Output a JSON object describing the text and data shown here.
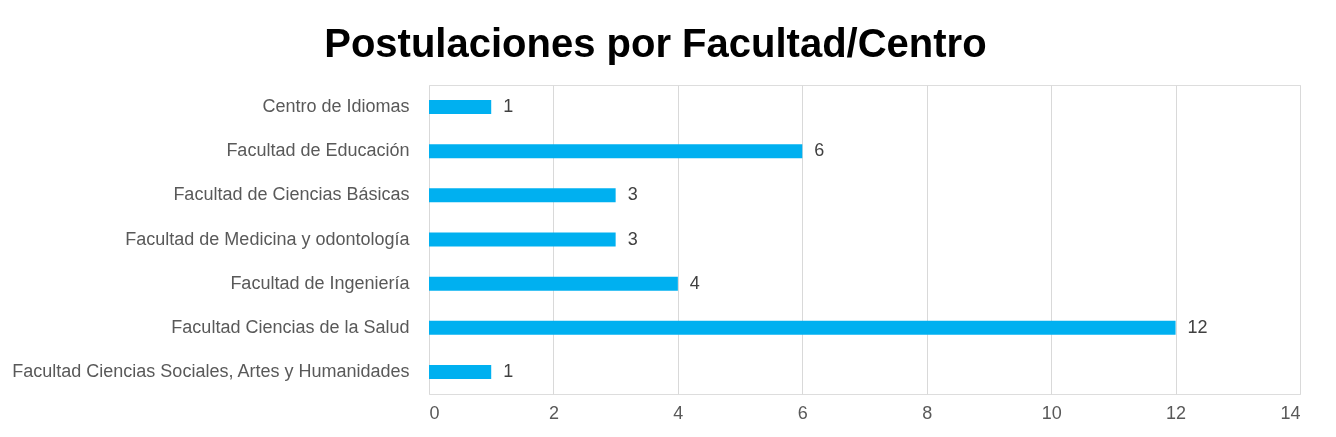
{
  "chart_data": {
    "type": "bar",
    "orientation": "horizontal",
    "title": "Postulaciones por Facultad/Centro",
    "categories": [
      "Centro de Idiomas",
      "Facultad de Educación",
      "Facultad de Ciencias Básicas",
      "Facultad de Medicina y odontología",
      "Facultad de Ingeniería",
      "Facultad Ciencias de la Salud",
      "Facultad Ciencias Sociales, Artes y Humanidades"
    ],
    "values": [
      1,
      6,
      3,
      3,
      4,
      12,
      1
    ],
    "color": "#00b0f0",
    "xlim": [
      0,
      14
    ],
    "xticks": [
      0,
      2,
      4,
      6,
      8,
      10,
      12,
      14
    ],
    "grid": "x",
    "data_labels": true
  }
}
